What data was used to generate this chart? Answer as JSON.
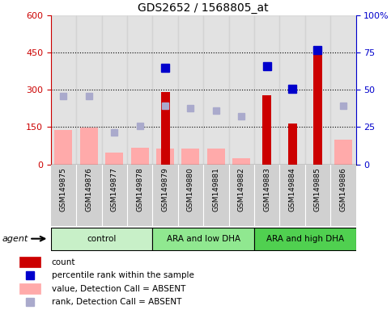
{
  "title": "GDS2652 / 1568805_at",
  "samples": [
    "GSM149875",
    "GSM149876",
    "GSM149877",
    "GSM149878",
    "GSM149879",
    "GSM149880",
    "GSM149881",
    "GSM149882",
    "GSM149883",
    "GSM149884",
    "GSM149885",
    "GSM149886"
  ],
  "groups": [
    {
      "label": "control",
      "color": "#c8f0c8",
      "start": 0,
      "end": 3
    },
    {
      "label": "ARA and low DHA",
      "color": "#90e890",
      "start": 4,
      "end": 7
    },
    {
      "label": "ARA and high DHA",
      "color": "#50d050",
      "start": 8,
      "end": 11
    }
  ],
  "count_values": [
    null,
    null,
    null,
    null,
    290,
    null,
    null,
    null,
    280,
    165,
    450,
    null
  ],
  "percentile_values": [
    null,
    null,
    null,
    null,
    390,
    null,
    null,
    null,
    395,
    305,
    460,
    null
  ],
  "absent_value_values": [
    140,
    148,
    48,
    68,
    65,
    65,
    65,
    25,
    null,
    null,
    null,
    100
  ],
  "absent_rank_values": [
    275,
    275,
    130,
    155,
    235,
    225,
    215,
    195,
    null,
    null,
    null,
    235
  ],
  "ylim_left": [
    0,
    600
  ],
  "ylim_right": [
    0,
    100
  ],
  "yticks_left": [
    0,
    150,
    300,
    450,
    600
  ],
  "yticks_right": [
    0,
    25,
    50,
    75,
    100
  ],
  "ytick_labels_left": [
    "0",
    "150",
    "300",
    "450",
    "600"
  ],
  "ytick_labels_right": [
    "0",
    "25",
    "50",
    "75",
    "100%"
  ],
  "grid_values": [
    150,
    300,
    450
  ],
  "count_color": "#cc0000",
  "percentile_color": "#0000cc",
  "absent_value_color": "#ffaaaa",
  "absent_rank_color": "#aaaacc",
  "agent_label": "agent",
  "legend_items": [
    {
      "color": "#cc0000",
      "label": "count",
      "type": "bar"
    },
    {
      "color": "#0000cc",
      "label": "percentile rank within the sample",
      "type": "marker"
    },
    {
      "color": "#ffaaaa",
      "label": "value, Detection Call = ABSENT",
      "type": "bar"
    },
    {
      "color": "#aaaacc",
      "label": "rank, Detection Call = ABSENT",
      "type": "marker"
    }
  ]
}
